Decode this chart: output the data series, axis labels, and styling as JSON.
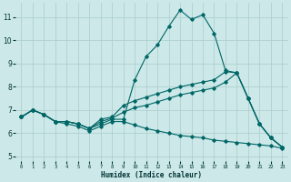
{
  "xlabel": "Humidex (Indice chaleur)",
  "background_color": "#cce8e8",
  "grid_color": "#aacccc",
  "line_color": "#006666",
  "x_ticks": [
    0,
    1,
    2,
    3,
    4,
    5,
    6,
    7,
    8,
    9,
    10,
    11,
    12,
    13,
    14,
    15,
    16,
    17,
    18,
    19,
    20,
    21,
    22,
    23
  ],
  "y_ticks": [
    5,
    6,
    7,
    8,
    9,
    10,
    11
  ],
  "ylim": [
    4.8,
    11.6
  ],
  "xlim": [
    -0.5,
    23.5
  ],
  "series": [
    {
      "x": [
        0,
        1,
        2,
        3,
        4,
        5,
        6,
        7,
        8,
        9,
        10,
        11,
        12,
        13,
        14,
        15,
        16,
        17,
        18,
        19,
        20,
        21,
        22,
        23
      ],
      "y": [
        6.7,
        7.0,
        6.8,
        6.5,
        6.5,
        6.4,
        6.2,
        6.4,
        6.6,
        6.6,
        8.3,
        9.3,
        9.8,
        10.6,
        11.3,
        10.9,
        11.1,
        10.3,
        8.7,
        8.6,
        7.5,
        6.4,
        5.8,
        5.4
      ]
    },
    {
      "x": [
        0,
        1,
        2,
        3,
        4,
        5,
        6,
        7,
        8,
        9,
        10,
        11,
        12,
        13,
        14,
        15,
        16,
        17,
        18,
        19,
        20,
        21,
        22,
        23
      ],
      "y": [
        6.7,
        7.0,
        6.8,
        6.5,
        6.5,
        6.4,
        6.2,
        6.6,
        6.7,
        7.2,
        7.4,
        7.55,
        7.7,
        7.85,
        8.0,
        8.1,
        8.2,
        8.3,
        8.65,
        8.6,
        7.5,
        6.4,
        5.8,
        5.4
      ]
    },
    {
      "x": [
        0,
        1,
        2,
        3,
        4,
        5,
        6,
        7,
        8,
        9,
        10,
        11,
        12,
        13,
        14,
        15,
        16,
        17,
        18,
        19,
        20,
        21,
        22,
        23
      ],
      "y": [
        6.7,
        7.0,
        6.8,
        6.5,
        6.5,
        6.4,
        6.2,
        6.5,
        6.65,
        6.9,
        7.1,
        7.2,
        7.35,
        7.5,
        7.65,
        7.75,
        7.85,
        7.95,
        8.2,
        8.6,
        7.5,
        6.4,
        5.8,
        5.4
      ]
    },
    {
      "x": [
        0,
        1,
        2,
        3,
        4,
        5,
        6,
        7,
        8,
        9,
        10,
        11,
        12,
        13,
        14,
        15,
        16,
        17,
        18,
        19,
        20,
        21,
        22,
        23
      ],
      "y": [
        6.7,
        7.0,
        6.8,
        6.5,
        6.4,
        6.3,
        6.1,
        6.3,
        6.5,
        6.5,
        6.35,
        6.2,
        6.1,
        6.0,
        5.9,
        5.85,
        5.8,
        5.7,
        5.65,
        5.6,
        5.55,
        5.5,
        5.45,
        5.35
      ]
    }
  ]
}
